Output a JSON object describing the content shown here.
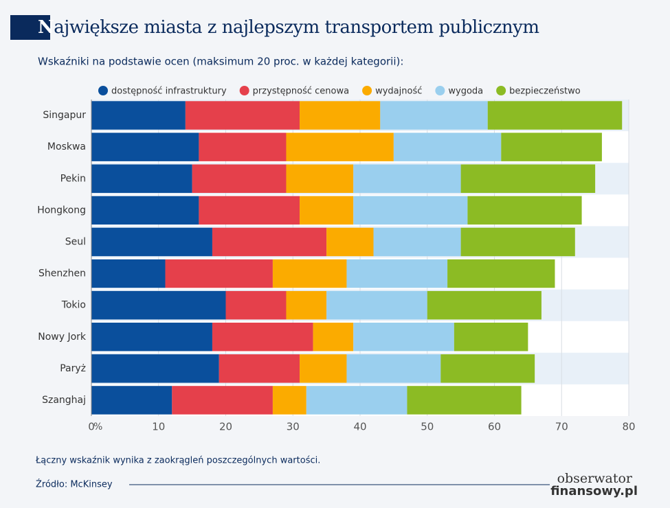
{
  "chart_data": {
    "type": "stacked-bar-horizontal",
    "title": "Największe miasta z najlepszym transportem publicznym",
    "subtitle": "Wskaźniki na podstawie ocen (maksimum 20 proc. w każdej kategorii):",
    "categories": [
      "Singapur",
      "Moskwa",
      "Pekin",
      "Hongkong",
      "Seul",
      "Shenzhen",
      "Tokio",
      "Nowy Jork",
      "Paryż",
      "Szanghaj"
    ],
    "series": [
      {
        "name": "dostępność infrastruktury",
        "color": "#0a4f9c",
        "values": [
          14,
          16,
          15,
          16,
          18,
          11,
          20,
          18,
          19,
          12
        ]
      },
      {
        "name": "przystępność cenowa",
        "color": "#e5404b",
        "values": [
          17,
          13,
          14,
          15,
          17,
          16,
          9,
          15,
          12,
          15
        ]
      },
      {
        "name": "wydajność",
        "color": "#fbab00",
        "values": [
          12,
          16,
          10,
          8,
          7,
          11,
          6,
          6,
          7,
          5
        ]
      },
      {
        "name": "wygoda",
        "color": "#9acfee",
        "values": [
          16,
          16,
          16,
          17,
          13,
          15,
          15,
          15,
          14,
          15
        ]
      },
      {
        "name": "bezpieczeństwo",
        "color": "#8cbb24",
        "values": [
          20,
          15,
          20,
          17,
          17,
          16,
          17,
          11,
          14,
          17
        ]
      }
    ],
    "xlim": [
      0,
      80
    ],
    "xticks": [
      0,
      10,
      20,
      30,
      40,
      50,
      60,
      70,
      80
    ],
    "x_unit": "%",
    "grid": true,
    "note": "Łączny wskaźnik wynika z zaokrągleń poszczególnych wartości.",
    "source": "Źródło: McKinsey",
    "logo": [
      "obserwator",
      "finansowy.pl"
    ]
  }
}
